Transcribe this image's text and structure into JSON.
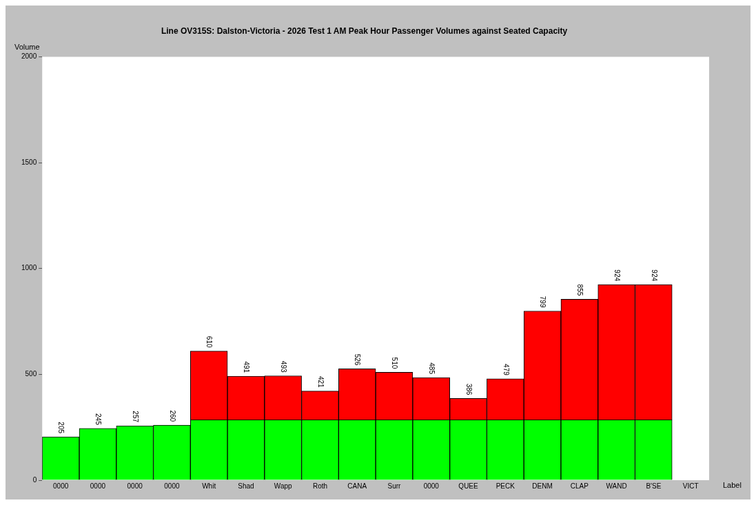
{
  "chart_data": {
    "type": "bar",
    "title": "Line OV315S: Dalston-Victoria - 2026 Test 1 AM Peak Hour Passenger Volumes against Seated Capacity",
    "xlabel": "Label",
    "ylabel": "Volume",
    "stacked": true,
    "grid": false,
    "legend": false,
    "categories": [
      "0000",
      "0000",
      "0000",
      "0000",
      "Whit",
      "Shad",
      "Wapp",
      "Roth",
      "CANA",
      "Surr",
      "0000",
      "QUEE",
      "PECK",
      "DENM",
      "CLAP",
      "WAND",
      "B'SE",
      "VICT"
    ],
    "ylim": [
      0,
      2000
    ],
    "yticks": [
      0,
      500,
      1000,
      1500,
      2000
    ],
    "series": [
      {
        "color": "#00ff00",
        "values": [
          205,
          245,
          257,
          260,
          285,
          285,
          285,
          285,
          285,
          285,
          285,
          285,
          285,
          285,
          285,
          285,
          285,
          null
        ]
      },
      {
        "color": "#ff0000",
        "values": [
          null,
          null,
          null,
          null,
          325,
          206,
          208,
          136,
          241,
          225,
          200,
          101,
          194,
          514,
          570,
          639,
          639,
          null
        ]
      }
    ],
    "totals": [
      "205",
      "245",
      "257",
      "260",
      "610",
      "491",
      "493",
      "421",
      "526",
      "510",
      "485",
      "386",
      "479",
      "799",
      "855",
      "924",
      "924",
      null
    ]
  }
}
